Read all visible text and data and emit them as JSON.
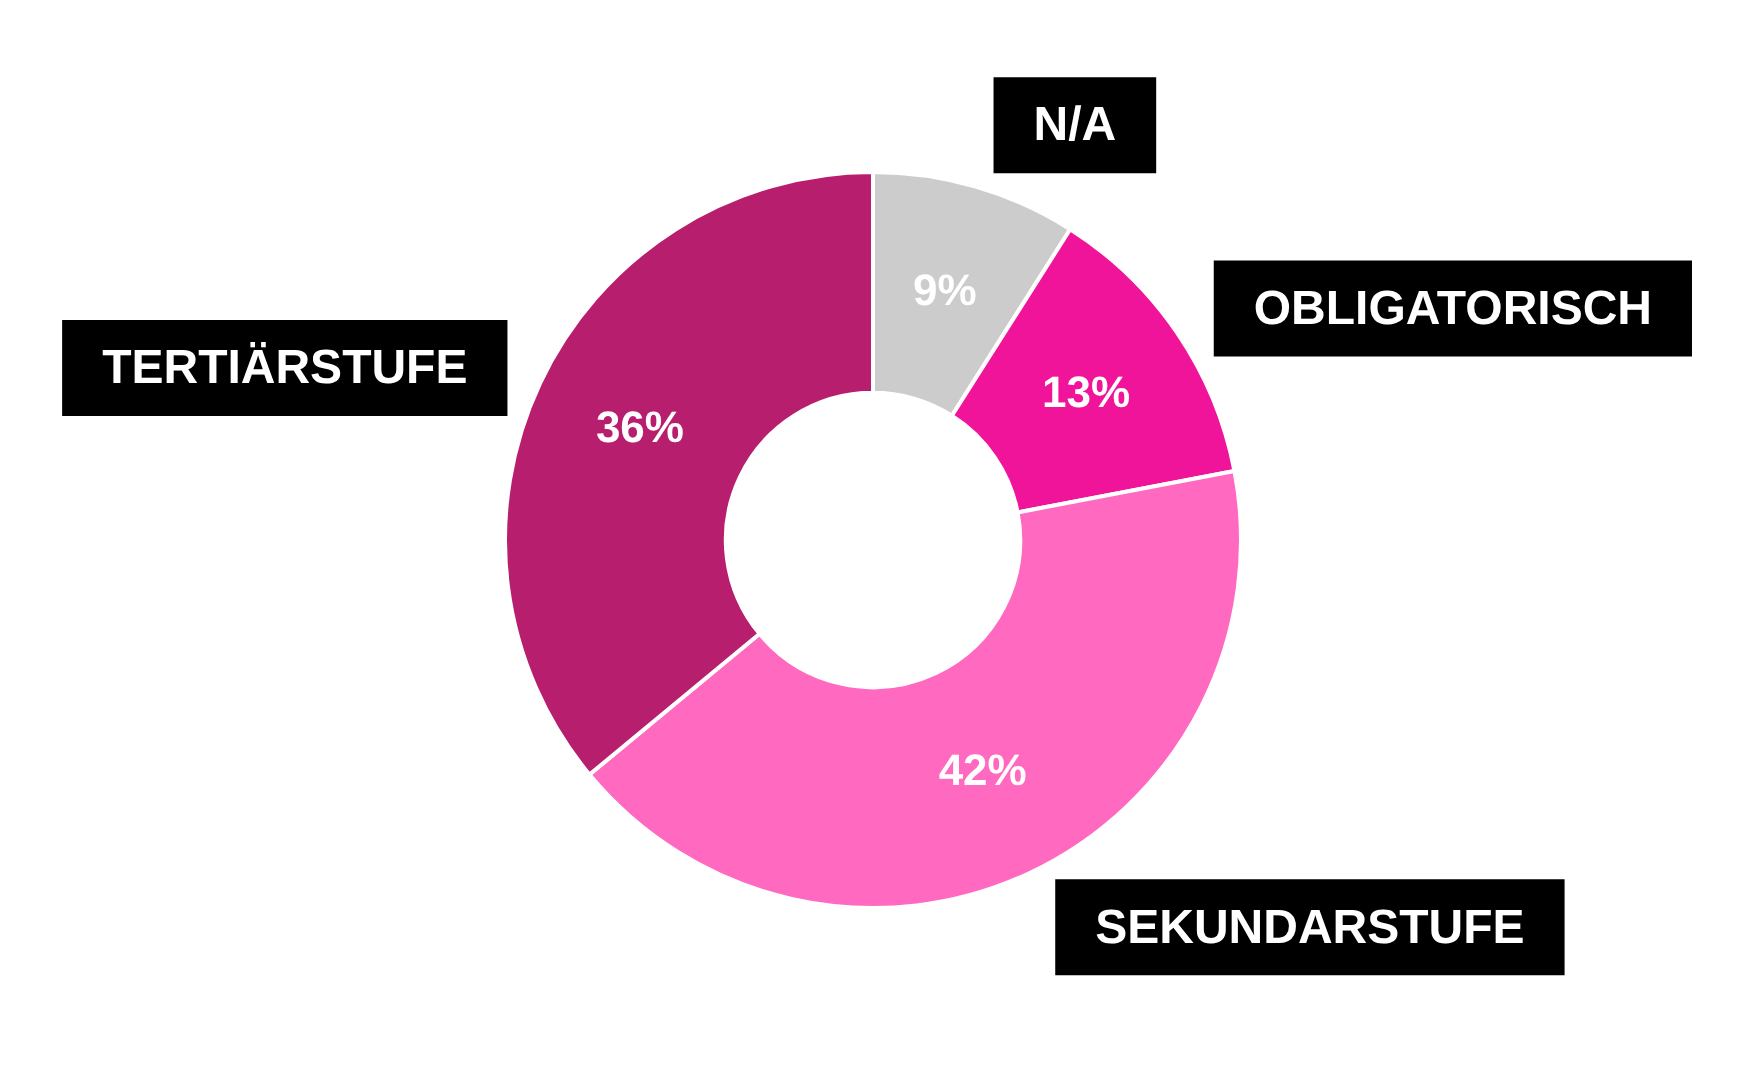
{
  "chart_data": {
    "type": "donut",
    "categories": [
      "N/A",
      "OBLIGATORISCH",
      "SEKUNDARSTUFE",
      "TERTIÄRSTUFE"
    ],
    "values": [
      9,
      13,
      42,
      36
    ],
    "colors": [
      "#cccccc",
      "#f0149a",
      "#ff69c0",
      "#b81e6e"
    ],
    "value_labels": [
      "9%",
      "13%",
      "42%",
      "36%"
    ]
  }
}
